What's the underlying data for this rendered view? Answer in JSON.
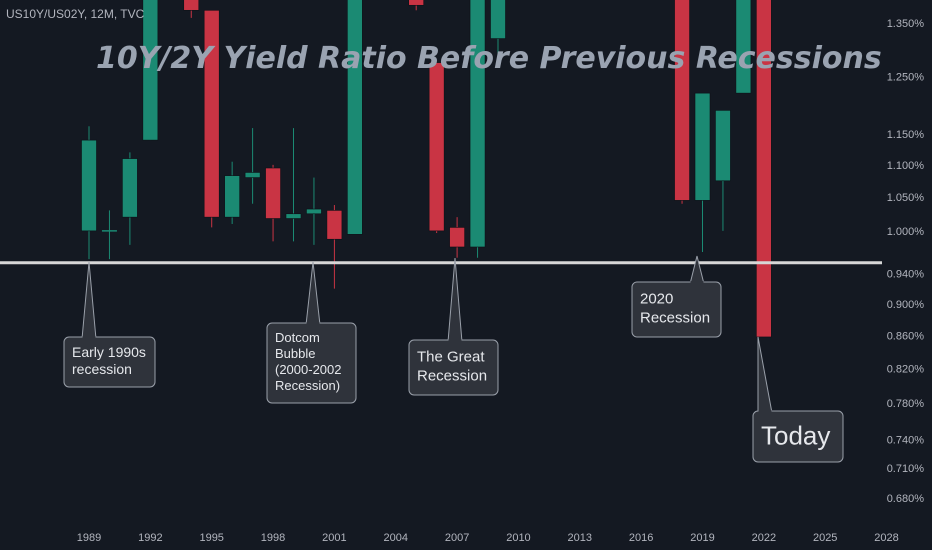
{
  "symbol_label": "US10Y/US02Y, 12M, TVC",
  "title": "10Y/2Y Yield Ratio Before Previous Recessions",
  "colors": {
    "background": "#141922",
    "up": "#1b8a73",
    "down": "#c93444",
    "text": "#b2b5be",
    "title": "#9aa3b1",
    "line": "#d7d7d7",
    "callout_bg": "#2f333b",
    "callout_border": "#9aa0aa"
  },
  "chart_data": {
    "type": "candlestick",
    "title": "10Y/2Y Yield Ratio Before Previous Recessions",
    "y_scale": "log",
    "y_ticks": [
      "1.350%",
      "1.250%",
      "1.150%",
      "1.100%",
      "1.050%",
      "1.000%",
      "0.940%",
      "0.900%",
      "0.860%",
      "0.820%",
      "0.780%",
      "0.740%",
      "0.710%",
      "0.680%"
    ],
    "x_ticks": [
      "1989",
      "1992",
      "1995",
      "1998",
      "2001",
      "2004",
      "2007",
      "2010",
      "2013",
      "2016",
      "2019",
      "2022",
      "2025",
      "2028"
    ],
    "candles": [
      {
        "year": 1989,
        "open": 1.0,
        "high": 1.163,
        "low": 0.96,
        "close": 1.14
      },
      {
        "year": 1990,
        "open": 1.0,
        "high": 1.03,
        "low": 0.96,
        "close": 1.0
      },
      {
        "year": 1991,
        "open": 1.02,
        "high": 1.12,
        "low": 0.98,
        "close": 1.11
      },
      {
        "year": 1992,
        "open": 1.14,
        "high": 1.5,
        "low": 1.14,
        "close": 1.5
      },
      {
        "year": 1994,
        "open": 1.5,
        "high": 1.5,
        "low": 1.36,
        "close": 1.375
      },
      {
        "year": 1995,
        "open": 1.375,
        "high": 1.375,
        "low": 1.005,
        "close": 1.02
      },
      {
        "year": 1996,
        "open": 1.02,
        "high": 1.105,
        "low": 1.01,
        "close": 1.083
      },
      {
        "year": 1997,
        "open": 1.08,
        "high": 1.16,
        "low": 1.04,
        "close": 1.088
      },
      {
        "year": 1998,
        "open": 1.095,
        "high": 1.1,
        "low": 0.985,
        "close": 1.018
      },
      {
        "year": 1999,
        "open": 1.018,
        "high": 1.16,
        "low": 0.985,
        "close": 1.025
      },
      {
        "year": 2000,
        "open": 1.025,
        "high": 1.08,
        "low": 0.98,
        "close": 1.032
      },
      {
        "year": 2001,
        "open": 1.03,
        "high": 1.038,
        "low": 0.92,
        "close": 0.988
      },
      {
        "year": 2002,
        "open": 0.995,
        "high": 1.5,
        "low": 0.995,
        "close": 1.5
      },
      {
        "year": 2005,
        "open": 1.5,
        "high": 1.5,
        "low": 1.375,
        "close": 1.385
      },
      {
        "year": 2006,
        "open": 1.275,
        "high": 1.275,
        "low": 0.997,
        "close": 1.0
      },
      {
        "year": 2007,
        "open": 1.005,
        "high": 1.02,
        "low": 0.962,
        "close": 0.977
      },
      {
        "year": 2008,
        "open": 0.977,
        "high": 1.5,
        "low": 0.962,
        "close": 1.5
      },
      {
        "year": 2009,
        "open": 1.32,
        "high": 1.5,
        "low": 1.29,
        "close": 1.5
      },
      {
        "year": 2018,
        "open": 1.5,
        "high": 1.5,
        "low": 1.04,
        "close": 1.045
      },
      {
        "year": 2019,
        "open": 1.045,
        "high": 1.22,
        "low": 0.97,
        "close": 1.22
      },
      {
        "year": 2020,
        "open": 1.075,
        "high": 1.19,
        "low": 1.0,
        "close": 1.19
      },
      {
        "year": 2021,
        "open": 1.22,
        "high": 1.5,
        "low": 1.22,
        "close": 1.5
      },
      {
        "year": 2022,
        "open": 1.5,
        "high": 1.5,
        "low": 0.858,
        "close": 0.858
      }
    ],
    "horizontal_line": 0.955,
    "annotations": [
      {
        "id": "early-1990s",
        "lines": [
          "Early 1990s",
          "recession"
        ]
      },
      {
        "id": "dotcom",
        "lines": [
          "Dotcom",
          "Bubble",
          "(2000-2002",
          "Recession)"
        ]
      },
      {
        "id": "great-recession",
        "lines": [
          "The Great",
          "Recession"
        ]
      },
      {
        "id": "covid-2020",
        "lines": [
          "2020",
          "Recession"
        ]
      },
      {
        "id": "today",
        "lines": [
          "Today"
        ]
      }
    ]
  }
}
